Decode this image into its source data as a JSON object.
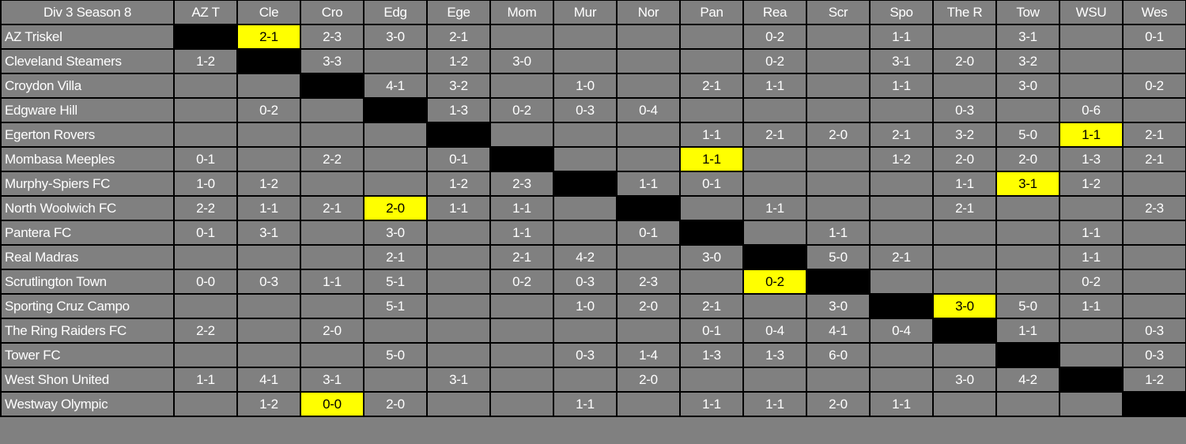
{
  "sheet": {
    "title": "Div 3 Season 8",
    "columns": [
      "AZ T",
      "Cle",
      "Cro",
      "Edg",
      "Ege",
      "Mom",
      "Mur",
      "Nor",
      "Pan",
      "Rea",
      "Scr",
      "Spo",
      "The R",
      "Tow",
      "WSU",
      "Wes"
    ],
    "colors": {
      "cell": "#808080",
      "diagonal": "#000000",
      "highlight": "#ffff00",
      "text": "#ffffff",
      "grid": "#000000"
    },
    "rows": [
      {
        "team": "AZ Triskel",
        "highlight_col": 1,
        "cells": [
          "",
          "2-1",
          "2-3",
          "3-0",
          "2-1",
          "",
          "",
          "",
          "",
          "0-2",
          "",
          "1-1",
          "",
          "3-1",
          "",
          "0-1"
        ]
      },
      {
        "team": "Cleveland Steamers",
        "highlight_col": null,
        "cells": [
          "1-2",
          "",
          "3-3",
          "",
          "1-2",
          "3-0",
          "",
          "",
          "",
          "0-2",
          "",
          "3-1",
          "2-0",
          "3-2",
          "",
          ""
        ]
      },
      {
        "team": "Croydon Villa",
        "highlight_col": null,
        "cells": [
          "",
          "",
          "",
          "4-1",
          "3-2",
          "",
          "1-0",
          "",
          "2-1",
          "1-1",
          "",
          "1-1",
          "",
          "3-0",
          "",
          "0-2"
        ]
      },
      {
        "team": "Edgware Hill",
        "highlight_col": null,
        "cells": [
          "",
          "0-2",
          "",
          "",
          "1-3",
          "0-2",
          "0-3",
          "0-4",
          "",
          "",
          "",
          "",
          "0-3",
          "",
          "0-6",
          ""
        ]
      },
      {
        "team": "Egerton Rovers",
        "highlight_col": 14,
        "cells": [
          "",
          "",
          "",
          "",
          "",
          "",
          "",
          "",
          "1-1",
          "2-1",
          "2-0",
          "2-1",
          "3-2",
          "5-0",
          "1-1",
          "2-1"
        ]
      },
      {
        "team": "Mombasa Meeples",
        "highlight_col": 8,
        "cells": [
          "0-1",
          "",
          "2-2",
          "",
          "0-1",
          "",
          "",
          "",
          "1-1",
          "",
          "",
          "1-2",
          "2-0",
          "2-0",
          "1-3",
          "2-1"
        ]
      },
      {
        "team": "Murphy-Spiers FC",
        "highlight_col": 13,
        "cells": [
          "1-0",
          "1-2",
          "",
          "",
          "1-2",
          "2-3",
          "",
          "1-1",
          "0-1",
          "",
          "",
          "",
          "1-1",
          "3-1",
          "1-2",
          ""
        ]
      },
      {
        "team": "North Woolwich FC",
        "highlight_col": 3,
        "cells": [
          "2-2",
          "1-1",
          "2-1",
          "2-0",
          "1-1",
          "1-1",
          "",
          "",
          "",
          "1-1",
          "",
          "",
          "2-1",
          "",
          "",
          "2-3"
        ]
      },
      {
        "team": "Pantera FC",
        "highlight_col": null,
        "cells": [
          "0-1",
          "3-1",
          "",
          "3-0",
          "",
          "1-1",
          "",
          "0-1",
          "",
          "",
          "1-1",
          "",
          "",
          "",
          "1-1",
          ""
        ]
      },
      {
        "team": "Real Madras",
        "highlight_col": null,
        "cells": [
          "",
          "",
          "",
          "2-1",
          "",
          "2-1",
          "4-2",
          "",
          "3-0",
          "",
          "5-0",
          "2-1",
          "",
          "",
          "1-1",
          ""
        ]
      },
      {
        "team": "Scrutlington Town",
        "highlight_col": 9,
        "cells": [
          "0-0",
          "0-3",
          "1-1",
          "5-1",
          "",
          "0-2",
          "0-3",
          "2-3",
          "",
          "0-2",
          "",
          "",
          "",
          "",
          "0-2",
          ""
        ]
      },
      {
        "team": "Sporting Cruz Campo",
        "highlight_col": 12,
        "cells": [
          "",
          "",
          "",
          "5-1",
          "",
          "",
          "1-0",
          "2-0",
          "2-1",
          "",
          "3-0",
          "",
          "3-0",
          "5-0",
          "1-1",
          ""
        ]
      },
      {
        "team": "The Ring Raiders FC",
        "highlight_col": null,
        "cells": [
          "2-2",
          "",
          "2-0",
          "",
          "",
          "",
          "",
          "",
          "0-1",
          "0-4",
          "4-1",
          "0-4",
          "",
          "1-1",
          "",
          "0-3"
        ]
      },
      {
        "team": "Tower FC",
        "highlight_col": null,
        "cells": [
          "",
          "",
          "",
          "5-0",
          "",
          "",
          "0-3",
          "1-4",
          "1-3",
          "1-3",
          "6-0",
          "",
          "",
          "",
          "",
          "0-3"
        ]
      },
      {
        "team": "West Shon United",
        "highlight_col": null,
        "cells": [
          "1-1",
          "4-1",
          "3-1",
          "",
          "3-1",
          "",
          "",
          "2-0",
          "",
          "",
          "",
          "",
          "3-0",
          "4-2",
          "",
          "1-2"
        ]
      },
      {
        "team": "Westway Olympic",
        "highlight_col": 2,
        "cells": [
          "",
          "1-2",
          "0-0",
          "2-0",
          "",
          "",
          "1-1",
          "",
          "1-1",
          "1-1",
          "2-0",
          "1-1",
          "",
          "",
          "",
          ""
        ]
      }
    ]
  }
}
